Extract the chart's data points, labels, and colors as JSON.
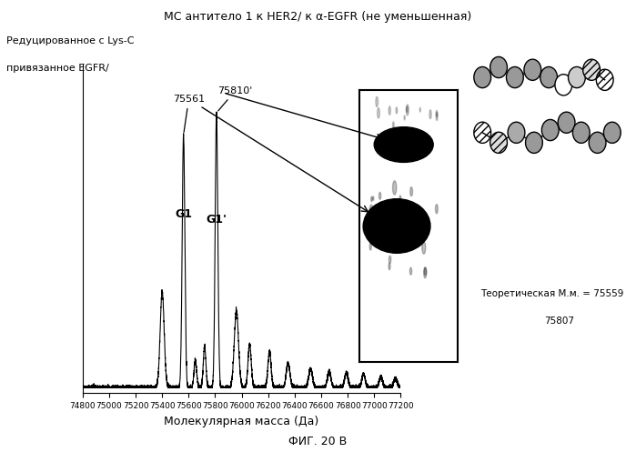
{
  "title": "МС антитело 1 к HER2/ к α-EGFR (не уменьшенная)",
  "xlabel": "Молекулярная масса (Да)",
  "ylabel": "Редуцированное с Lys-C\nпривязанное EGFR/",
  "fig_label": "ФИГ. 20 В",
  "theoretical_text_line1": "Теоретическая М.м. = 75559",
  "theoretical_text_line2": "75807",
  "xlim": [
    74800,
    77200
  ],
  "xticks": [
    74800,
    75000,
    75200,
    75400,
    75600,
    75800,
    76000,
    76200,
    76400,
    76600,
    76800,
    77000,
    77200
  ],
  "background_color": "#ffffff",
  "line_color": "#000000",
  "peaks": [
    {
      "mu": 75400,
      "sigma": 15,
      "amp": 0.35
    },
    {
      "mu": 75561,
      "sigma": 10,
      "amp": 0.92
    },
    {
      "mu": 75810,
      "sigma": 10,
      "amp": 1.0
    },
    {
      "mu": 75650,
      "sigma": 10,
      "amp": 0.1
    },
    {
      "mu": 75720,
      "sigma": 10,
      "amp": 0.15
    },
    {
      "mu": 75960,
      "sigma": 16,
      "amp": 0.28
    },
    {
      "mu": 76060,
      "sigma": 12,
      "amp": 0.16
    },
    {
      "mu": 76210,
      "sigma": 12,
      "amp": 0.13
    },
    {
      "mu": 76350,
      "sigma": 14,
      "amp": 0.09
    },
    {
      "mu": 76520,
      "sigma": 14,
      "amp": 0.07
    },
    {
      "mu": 76660,
      "sigma": 13,
      "amp": 0.06
    },
    {
      "mu": 76790,
      "sigma": 13,
      "amp": 0.055
    },
    {
      "mu": 76920,
      "sigma": 13,
      "amp": 0.05
    },
    {
      "mu": 77050,
      "sigma": 13,
      "amp": 0.04
    },
    {
      "mu": 77160,
      "sigma": 13,
      "amp": 0.035
    }
  ]
}
